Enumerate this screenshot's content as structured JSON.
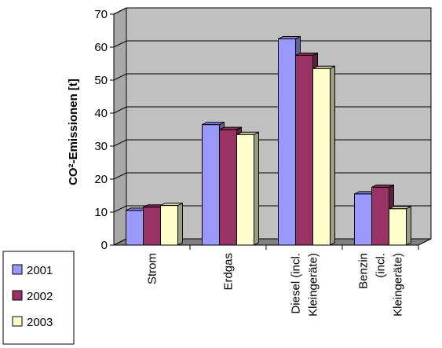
{
  "chart_data": {
    "type": "bar",
    "three_d": true,
    "title": "",
    "xlabel": "",
    "ylabel": "CO²-Emissionen [t]",
    "ylim": [
      0,
      70
    ],
    "yticks": [
      0,
      10,
      20,
      30,
      40,
      50,
      60,
      70
    ],
    "grid": true,
    "legend_position": "bottom-left",
    "categories": [
      [
        "Strom"
      ],
      [
        "Erdgas"
      ],
      [
        "Diesel (incl.",
        "Kleingeräte)"
      ],
      [
        "Benzin",
        "(incl.",
        "Kleingeräte)"
      ]
    ],
    "series": [
      {
        "name": "2001",
        "color": "#9999ff",
        "values": [
          10.5,
          36.5,
          62.5,
          15.5
        ]
      },
      {
        "name": "2002",
        "color": "#993366",
        "values": [
          11.5,
          35,
          57.5,
          17.5
        ]
      },
      {
        "name": "2003",
        "color": "#ffffcc",
        "values": [
          12,
          33.5,
          53.5,
          11
        ]
      }
    ],
    "colors": {
      "wall": "#c0c0c0",
      "floor": "#808080",
      "grid": "#000000"
    }
  }
}
